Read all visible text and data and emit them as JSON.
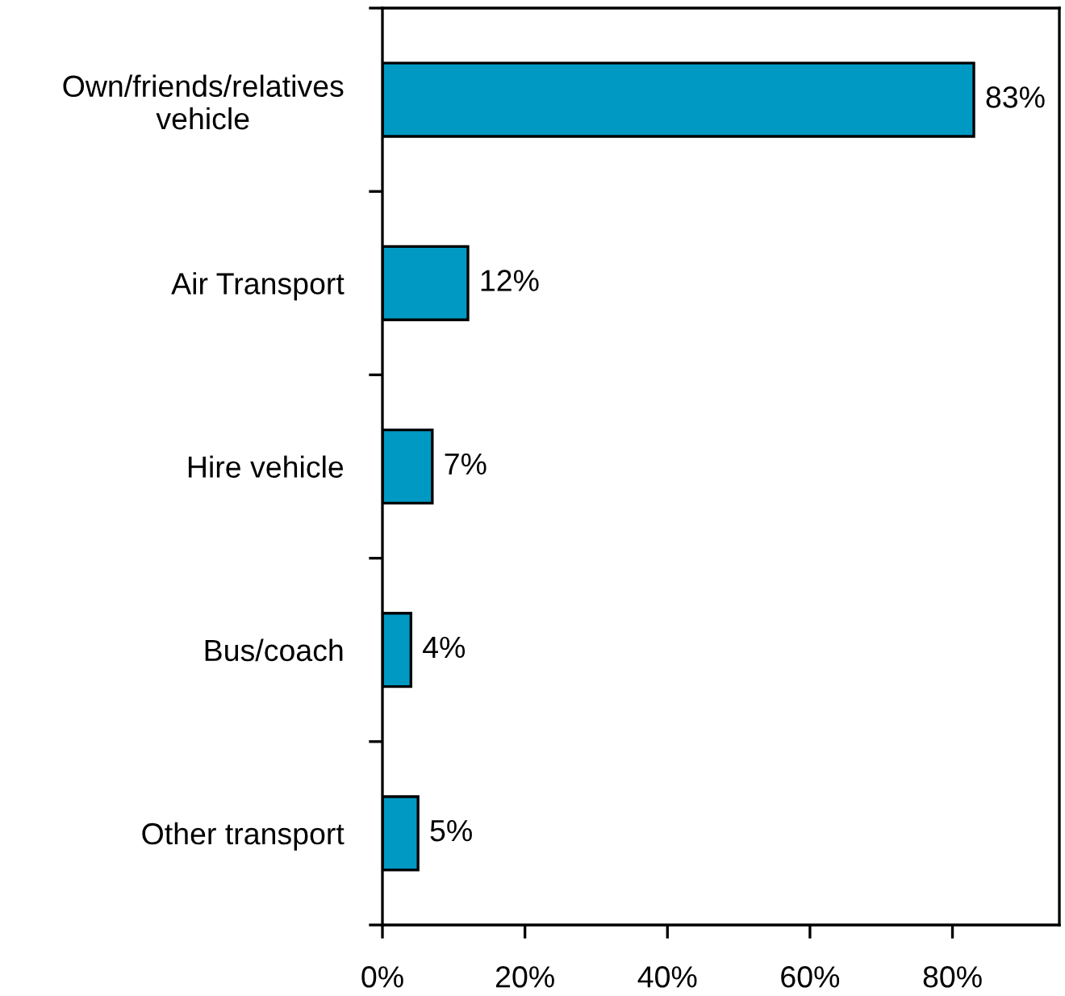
{
  "chart_data": {
    "type": "bar",
    "orientation": "horizontal",
    "categories": [
      "Own/friends/relatives vehicle",
      "Air Transport",
      "Hire vehicle",
      "Bus/coach",
      "Other transport"
    ],
    "values": [
      83,
      12,
      7,
      4,
      5
    ],
    "color": "#0099c4",
    "value_labels": [
      "83%",
      "12%",
      "7%",
      "4%",
      "5%"
    ],
    "xlim": [
      0,
      95
    ],
    "xticks": [
      {
        "value": 0,
        "label": "0%"
      },
      {
        "value": 20,
        "label": "20%"
      },
      {
        "value": 40,
        "label": "40%"
      },
      {
        "value": 60,
        "label": "60%"
      },
      {
        "value": 80,
        "label": "80%"
      }
    ],
    "grid": false,
    "legend": false
  }
}
